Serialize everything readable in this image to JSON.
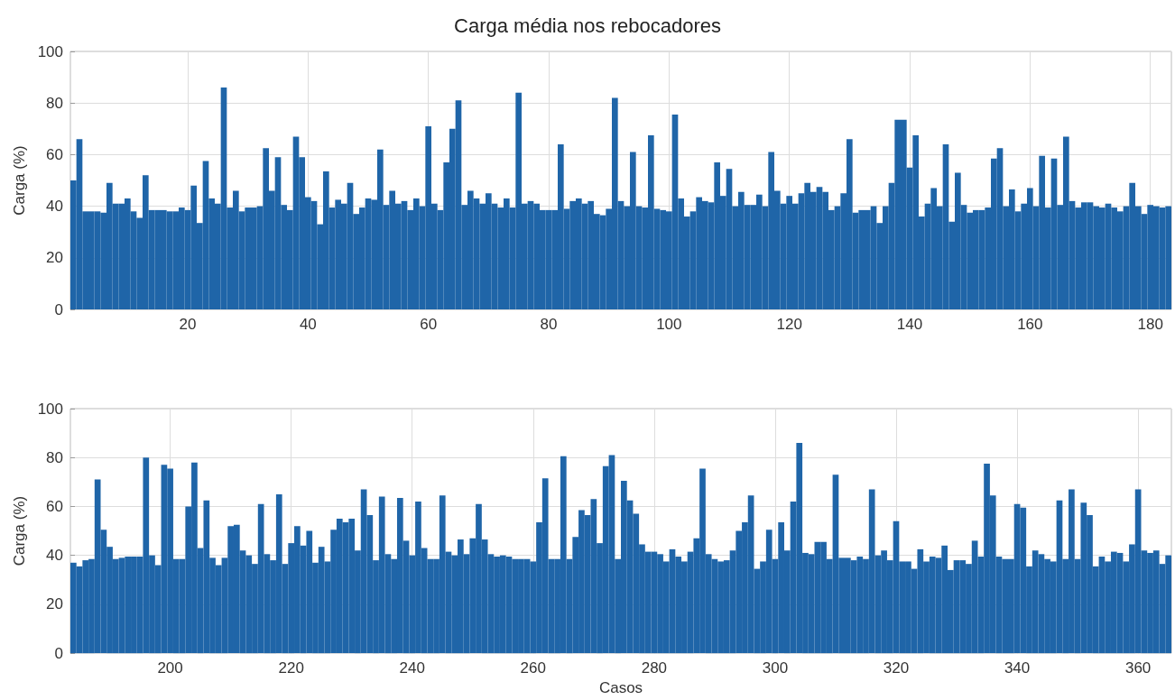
{
  "chart_data": [
    {
      "type": "bar",
      "title": "Carga média nos rebocadores",
      "ylabel": "Carga (%)",
      "color": "#1f65a8",
      "grid": true,
      "xlim": [
        0.5,
        183.5
      ],
      "xticks": [
        20,
        40,
        60,
        80,
        100,
        120,
        140,
        160,
        180
      ],
      "ylim": [
        0,
        100
      ],
      "yticks": [
        0,
        20,
        40,
        60,
        80,
        100
      ],
      "x": [
        1,
        2,
        3,
        4,
        5,
        6,
        7,
        8,
        9,
        10,
        11,
        12,
        13,
        14,
        15,
        16,
        17,
        18,
        19,
        20,
        21,
        22,
        23,
        24,
        25,
        26,
        27,
        28,
        29,
        30,
        31,
        32,
        33,
        34,
        35,
        36,
        37,
        38,
        39,
        40,
        41,
        42,
        43,
        44,
        45,
        46,
        47,
        48,
        49,
        50,
        51,
        52,
        53,
        54,
        55,
        56,
        57,
        58,
        59,
        60,
        61,
        62,
        63,
        64,
        65,
        66,
        67,
        68,
        69,
        70,
        71,
        72,
        73,
        74,
        75,
        76,
        77,
        78,
        79,
        80,
        81,
        82,
        83,
        84,
        85,
        86,
        87,
        88,
        89,
        90,
        91,
        92,
        93,
        94,
        95,
        96,
        97,
        98,
        99,
        100,
        101,
        102,
        103,
        104,
        105,
        106,
        107,
        108,
        109,
        110,
        111,
        112,
        113,
        114,
        115,
        116,
        117,
        118,
        119,
        120,
        121,
        122,
        123,
        124,
        125,
        126,
        127,
        128,
        129,
        130,
        131,
        132,
        133,
        134,
        135,
        136,
        137,
        138,
        139,
        140,
        141,
        142,
        143,
        144,
        145,
        146,
        147,
        148,
        149,
        150,
        151,
        152,
        153,
        154,
        155,
        156,
        157,
        158,
        159,
        160,
        161,
        162,
        163,
        164,
        165,
        166,
        167,
        168,
        169,
        170,
        171,
        172,
        173,
        174,
        175,
        176,
        177,
        178,
        179,
        180,
        181,
        182,
        183
      ],
      "values": [
        50,
        66,
        38,
        38,
        38,
        37.5,
        49,
        41,
        41,
        43,
        38,
        35.5,
        52,
        38.5,
        38.5,
        38.5,
        38,
        38,
        39.5,
        38.5,
        48,
        33.5,
        57.5,
        43,
        41,
        86,
        39.5,
        46,
        38,
        39.5,
        39.5,
        40,
        62.5,
        46,
        59,
        40.5,
        38.5,
        67,
        59,
        43.5,
        42,
        33,
        53.5,
        39.5,
        42.5,
        41,
        49,
        37,
        39.5,
        43,
        42.5,
        62,
        40.5,
        46,
        41,
        42,
        38.5,
        43,
        40,
        71,
        41,
        38.5,
        57,
        70,
        81,
        40.5,
        46,
        43,
        41,
        45,
        41,
        39.5,
        43,
        39.5,
        84,
        41,
        42,
        41,
        38.5,
        38.5,
        38.5,
        64,
        39,
        42,
        43,
        41,
        42,
        37,
        36.5,
        39,
        82,
        42,
        40,
        61,
        40,
        39.5,
        67.5,
        39,
        38.5,
        38,
        75.5,
        43,
        36,
        38,
        43.5,
        42,
        41.5,
        57,
        44,
        54.5,
        40,
        45.5,
        40.5,
        40.5,
        44.5,
        40,
        61,
        46,
        41,
        44,
        41,
        45,
        49,
        45.5,
        47.5,
        45.5,
        38.5,
        40,
        45,
        66,
        37.5,
        38.5,
        38.5,
        40,
        33.5,
        40,
        49,
        73.5,
        73.5,
        55,
        67.5,
        36,
        41,
        47,
        40,
        64,
        34,
        53,
        40.5,
        37.5,
        38.5,
        38.5,
        39.5,
        58.5,
        62.5,
        40,
        46.5,
        38,
        41,
        47,
        40,
        59.5,
        39.5,
        58.5,
        40.5,
        67,
        42,
        39.5,
        41.5,
        41.5,
        40,
        39.5,
        41,
        39.5,
        38,
        40,
        49,
        40,
        37,
        40.5,
        40,
        39.5,
        40
      ]
    },
    {
      "type": "bar",
      "xlabel": "Casos",
      "ylabel": "Carga (%)",
      "color": "#1f65a8",
      "grid": true,
      "xlim": [
        183.5,
        365.5
      ],
      "xticks": [
        200,
        220,
        240,
        260,
        280,
        300,
        320,
        340,
        360
      ],
      "ylim": [
        0,
        100
      ],
      "yticks": [
        0,
        20,
        40,
        60,
        80,
        100
      ],
      "x": [
        184,
        185,
        186,
        187,
        188,
        189,
        190,
        191,
        192,
        193,
        194,
        195,
        196,
        197,
        198,
        199,
        200,
        201,
        202,
        203,
        204,
        205,
        206,
        207,
        208,
        209,
        210,
        211,
        212,
        213,
        214,
        215,
        216,
        217,
        218,
        219,
        220,
        221,
        222,
        223,
        224,
        225,
        226,
        227,
        228,
        229,
        230,
        231,
        232,
        233,
        234,
        235,
        236,
        237,
        238,
        239,
        240,
        241,
        242,
        243,
        244,
        245,
        246,
        247,
        248,
        249,
        250,
        251,
        252,
        253,
        254,
        255,
        256,
        257,
        258,
        259,
        260,
        261,
        262,
        263,
        264,
        265,
        266,
        267,
        268,
        269,
        270,
        271,
        272,
        273,
        274,
        275,
        276,
        277,
        278,
        279,
        280,
        281,
        282,
        283,
        284,
        285,
        286,
        287,
        288,
        289,
        290,
        291,
        292,
        293,
        294,
        295,
        296,
        297,
        298,
        299,
        300,
        301,
        302,
        303,
        304,
        305,
        306,
        307,
        308,
        309,
        310,
        311,
        312,
        313,
        314,
        315,
        316,
        317,
        318,
        319,
        320,
        321,
        322,
        323,
        324,
        325,
        326,
        327,
        328,
        329,
        330,
        331,
        332,
        333,
        334,
        335,
        336,
        337,
        338,
        339,
        340,
        341,
        342,
        343,
        344,
        345,
        346,
        347,
        348,
        349,
        350,
        351,
        352,
        353,
        354,
        355,
        356,
        357,
        358,
        359,
        360,
        361,
        362,
        363,
        364,
        365
      ],
      "values": [
        37,
        35.5,
        38,
        38.5,
        71,
        50.5,
        43.5,
        38.5,
        39,
        39.5,
        39.5,
        39.5,
        80,
        40,
        36,
        77,
        75.5,
        38.5,
        38.5,
        60,
        78,
        43,
        62.5,
        39,
        36,
        39,
        52,
        52.5,
        42,
        40,
        36.5,
        61,
        40.5,
        38,
        65,
        36.5,
        45,
        52,
        44,
        50,
        37,
        43.5,
        37.5,
        50.5,
        55,
        53.5,
        55,
        42,
        67,
        56.5,
        38,
        64,
        40.5,
        38.5,
        63.5,
        46,
        40,
        62,
        43,
        38.5,
        38.5,
        64.5,
        41.5,
        40,
        46.5,
        40.5,
        47,
        61,
        46.5,
        40.5,
        39.5,
        40,
        39.5,
        38.5,
        38.5,
        38.5,
        37.5,
        53.5,
        71.5,
        38.5,
        38.5,
        80.5,
        38.5,
        47.5,
        58.5,
        56.5,
        63,
        45,
        76.5,
        81,
        38.5,
        70.5,
        62.5,
        57,
        44.5,
        41.5,
        41.5,
        40.5,
        37.5,
        42.5,
        39.5,
        37.5,
        41.5,
        47,
        75.5,
        40.5,
        38.5,
        37.5,
        38,
        42,
        50,
        53.5,
        64.5,
        34.5,
        37.5,
        50.5,
        38.5,
        53.5,
        42,
        62,
        86,
        41,
        40.5,
        45.5,
        45.5,
        38.5,
        73,
        39,
        39,
        38,
        39.5,
        38.5,
        67,
        40,
        42,
        38,
        54,
        37.5,
        37.5,
        34.5,
        42.5,
        37.5,
        39.5,
        39,
        44,
        34,
        38,
        38,
        36.5,
        46,
        39.5,
        77.5,
        64.5,
        39.5,
        38.5,
        38.5,
        61,
        59.5,
        35.5,
        42,
        40.5,
        38.5,
        37.5,
        62.5,
        38.5,
        67,
        38.5,
        61.5,
        56.5,
        35.5,
        39.5,
        37.5,
        41.5,
        41,
        37.5,
        44.5,
        67,
        42,
        41,
        42,
        36.5,
        40
      ]
    }
  ]
}
